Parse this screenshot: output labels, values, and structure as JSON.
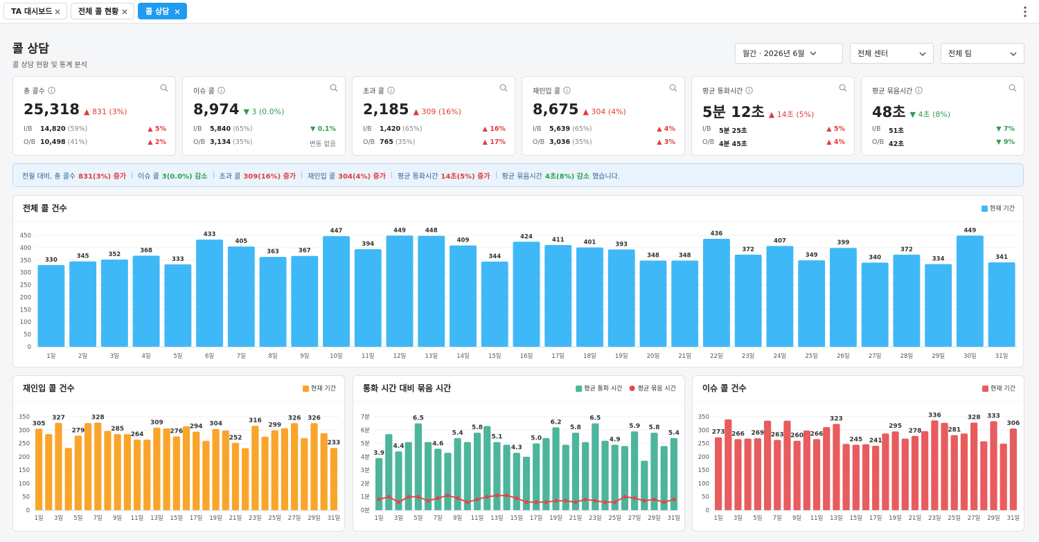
{
  "tabs": [
    {
      "label": "TA 대시보드",
      "active": false
    },
    {
      "label": "전체 콜 현황",
      "active": false
    },
    {
      "label": "콜 상담",
      "active": true
    }
  ],
  "header": {
    "title": "콜 상담",
    "subtitle": "콜 상담 현황 및 통계 분석"
  },
  "filters": [
    "월간 · 2026년 6월",
    "전체 센터",
    "전체 팀"
  ],
  "kpis": [
    {
      "label": "총 콜수",
      "value": "25,318",
      "delta": "▲ 831 (3%)",
      "dir": "up",
      "rows": [
        {
          "type": "I/B",
          "value": "14,820",
          "share": "(59%)",
          "change": "▲ 5%",
          "dir": "up"
        },
        {
          "type": "O/B",
          "value": "10,498",
          "share": "(41%)",
          "change": "▲ 2%",
          "dir": "up"
        }
      ]
    },
    {
      "label": "이슈 콜",
      "value": "8,974",
      "delta": "▼ 3 (0.0%)",
      "dir": "down",
      "rows": [
        {
          "type": "I/B",
          "value": "5,840",
          "share": "(65%)",
          "change": "▼ 0.1%",
          "dir": "down"
        },
        {
          "type": "O/B",
          "value": "3,134",
          "share": "(35%)",
          "change": "변동 없음",
          "dir": "none"
        }
      ]
    },
    {
      "label": "초과 콜",
      "value": "2,185",
      "delta": "▲ 309 (16%)",
      "dir": "up",
      "rows": [
        {
          "type": "I/B",
          "value": "1,420",
          "share": "(65%)",
          "change": "▲ 16%",
          "dir": "up"
        },
        {
          "type": "O/B",
          "value": "765",
          "share": "(35%)",
          "change": "▲ 17%",
          "dir": "up"
        }
      ]
    },
    {
      "label": "재인입 콜",
      "value": "8,675",
      "delta": "▲ 304 (4%)",
      "dir": "up",
      "rows": [
        {
          "type": "I/B",
          "value": "5,639",
          "share": "(65%)",
          "change": "▲ 4%",
          "dir": "up"
        },
        {
          "type": "O/B",
          "value": "3,036",
          "share": "(35%)",
          "change": "▲ 3%",
          "dir": "up"
        }
      ]
    },
    {
      "label": "평균 통화시간",
      "value": "5분 12초",
      "delta": "▲ 14초 (5%)",
      "dir": "up",
      "rows": [
        {
          "type": "I/B",
          "value": "5분 25초",
          "change": "▲ 5%",
          "dir": "up"
        },
        {
          "type": "O/B",
          "value": "4분 45초",
          "change": "▲ 4%",
          "dir": "up"
        }
      ]
    },
    {
      "label": "평균 묶음시간",
      "value": "48초",
      "delta": "▼ 4초 (8%)",
      "dir": "down",
      "rows": [
        {
          "type": "I/B",
          "value": "51초",
          "change": "▼ 7%",
          "dir": "down"
        },
        {
          "type": "O/B",
          "value": "42초",
          "change": "▼ 9%",
          "dir": "down"
        }
      ]
    }
  ],
  "summary": [
    {
      "label": "전월 대비, 총 콜수",
      "value": "831(3%) 증가",
      "dir": "up"
    },
    {
      "label": "이슈 콜",
      "value": "3(0.0%) 감소",
      "dir": "down"
    },
    {
      "label": "초과 콜",
      "value": "309(16%) 증가",
      "dir": "up"
    },
    {
      "label": "재인입 콜",
      "value": "304(4%) 증가",
      "dir": "up"
    },
    {
      "label": "평균 통화시간",
      "value": "14초(5%) 증가",
      "dir": "up"
    },
    {
      "label": "평균 묶음시간",
      "value": "4초(8%) 감소",
      "dir": "down",
      "tail": "했습니다."
    }
  ],
  "chart_data": [
    {
      "type": "bar",
      "title": "전체 콜 건수",
      "categories": [
        "1일",
        "2일",
        "3일",
        "4일",
        "5일",
        "6일",
        "7일",
        "8일",
        "9일",
        "10일",
        "11일",
        "12일",
        "13일",
        "14일",
        "15일",
        "16일",
        "17일",
        "18일",
        "19일",
        "20일",
        "21일",
        "22일",
        "23일",
        "24일",
        "25일",
        "26일",
        "27일",
        "28일",
        "29일",
        "30일",
        "31일"
      ],
      "series": [
        {
          "name": "현재 기간",
          "color": "#3fb8f7",
          "values": [
            330,
            345,
            352,
            368,
            333,
            433,
            405,
            363,
            367,
            447,
            394,
            449,
            448,
            409,
            344,
            424,
            411,
            401,
            393,
            348,
            348,
            436,
            372,
            407,
            349,
            399,
            340,
            372,
            334,
            449,
            341
          ]
        }
      ],
      "ylim": [
        0,
        450
      ],
      "yticks": [
        0,
        50,
        100,
        150,
        200,
        250,
        300,
        350,
        400,
        450
      ],
      "grid": true,
      "legend": "top-right",
      "label_step": 1
    },
    {
      "type": "bar",
      "title": "재인입 콜 건수",
      "categories": [
        "1일",
        null,
        "3일",
        null,
        "5일",
        null,
        "7일",
        null,
        "9일",
        null,
        "11일",
        null,
        "13일",
        null,
        "15일",
        null,
        "17일",
        null,
        "19일",
        null,
        "21일",
        null,
        "23일",
        null,
        "25일",
        null,
        "27일",
        null,
        "29일",
        null,
        "31일"
      ],
      "series": [
        {
          "name": "현재 기간",
          "color": "#f9a52b",
          "values": [
            305,
            285,
            327,
            233,
            279,
            326,
            328,
            297,
            285,
            285,
            264,
            264,
            309,
            306,
            276,
            314,
            294,
            260,
            304,
            298,
            252,
            232,
            316,
            275,
            299,
            307,
            326,
            270,
            326,
            288,
            233
          ]
        }
      ],
      "ylim": [
        0,
        350
      ],
      "yticks": [
        0,
        50,
        100,
        150,
        200,
        250,
        300,
        350
      ],
      "grid": true,
      "legend": "top-right",
      "label_step": 2
    },
    {
      "type": "combo",
      "title": "통화 시간 대비 묶음 시간",
      "categories": [
        "1일",
        null,
        "3일",
        null,
        "5일",
        null,
        "7일",
        null,
        "9일",
        null,
        "11일",
        null,
        "13일",
        null,
        "15일",
        null,
        "17일",
        null,
        "19일",
        null,
        "21일",
        null,
        "23일",
        null,
        "25일",
        null,
        "27일",
        null,
        "29일",
        null,
        "31일"
      ],
      "series": [
        {
          "name": "평균 통화 시간",
          "color": "#4db59c",
          "kind": "bar",
          "values": [
            3.9,
            5.7,
            4.4,
            5.1,
            6.5,
            5.1,
            4.6,
            4.3,
            5.4,
            5.1,
            5.8,
            6.3,
            5.1,
            4.9,
            4.3,
            4.0,
            5.0,
            5.4,
            6.2,
            4.9,
            5.8,
            5.1,
            6.5,
            5.2,
            4.9,
            4.8,
            5.9,
            3.7,
            5.8,
            4.8,
            5.4
          ],
          "value_labels": [
            "3.9",
            null,
            "4.4",
            null,
            "6.5",
            null,
            "4.6",
            null,
            "5.4",
            null,
            "5.8",
            null,
            "5.1",
            null,
            "4.3",
            null,
            "5.0",
            null,
            "6.2",
            null,
            "5.8",
            null,
            "6.5",
            null,
            "4.9",
            null,
            "5.9",
            null,
            "5.8",
            null,
            "5.4"
          ]
        },
        {
          "name": "평균 묶음 시간",
          "color": "#e2474b",
          "kind": "line",
          "values": [
            0.8,
            1.0,
            0.6,
            1.0,
            1.0,
            0.7,
            0.9,
            1.1,
            0.9,
            0.6,
            0.8,
            1.0,
            1.1,
            1.1,
            0.9,
            0.6,
            0.6,
            0.6,
            0.7,
            0.7,
            0.6,
            0.8,
            0.7,
            0.6,
            0.6,
            1.0,
            0.9,
            0.7,
            0.8,
            0.6,
            0.8
          ]
        }
      ],
      "ylim": [
        0,
        7
      ],
      "yticks": [
        {
          "value": 0,
          "label": "0분"
        },
        {
          "value": 1,
          "label": "1분"
        },
        {
          "value": 2,
          "label": "2분"
        },
        {
          "value": 3,
          "label": "3분"
        },
        {
          "value": 4,
          "label": "4분"
        },
        {
          "value": 5,
          "label": "5분"
        },
        {
          "value": 6,
          "label": "6분"
        },
        {
          "value": 7,
          "label": "7분"
        }
      ],
      "grid": true,
      "legend": "top-right"
    },
    {
      "type": "bar",
      "title": "이슈 콜 건수",
      "categories": [
        "1일",
        null,
        "3일",
        null,
        "5일",
        null,
        "7일",
        null,
        "9일",
        null,
        "11일",
        null,
        "13일",
        null,
        "15일",
        null,
        "17일",
        null,
        "19일",
        null,
        "21일",
        null,
        "23일",
        null,
        "25일",
        null,
        "27일",
        null,
        "29일",
        null,
        "31일"
      ],
      "series": [
        {
          "name": "현재 기간",
          "color": "#e85c5e",
          "values": [
            273,
            340,
            266,
            268,
            269,
            335,
            263,
            335,
            260,
            298,
            266,
            311,
            323,
            248,
            245,
            247,
            241,
            287,
            295,
            268,
            278,
            296,
            336,
            327,
            281,
            287,
            328,
            258,
            333,
            249,
            306
          ]
        }
      ],
      "ylim": [
        0,
        350
      ],
      "yticks": [
        0,
        50,
        100,
        150,
        200,
        250,
        300,
        350
      ],
      "grid": true,
      "legend": "top-right",
      "label_step": 2
    }
  ]
}
